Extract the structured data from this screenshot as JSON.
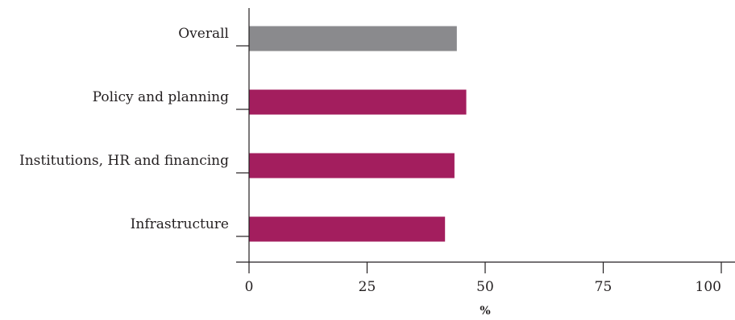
{
  "chart_data": {
    "type": "bar",
    "orientation": "horizontal",
    "categories": [
      "Overall",
      "Policy and planning",
      "Institutions, HR and financing",
      "Infrastructure"
    ],
    "values": [
      44,
      46,
      43.5,
      41.5
    ],
    "colors": [
      "#8a8a8d",
      "#a31e5e",
      "#a31e5e",
      "#a31e5e"
    ],
    "xlabel": "%",
    "ylabel": "",
    "xlim": [
      0,
      100
    ],
    "xticks": [
      0,
      25,
      50,
      75,
      100
    ],
    "xtick_labels": [
      "0",
      "25",
      "50",
      "75",
      "100"
    ],
    "grid": false,
    "legend": "none"
  }
}
